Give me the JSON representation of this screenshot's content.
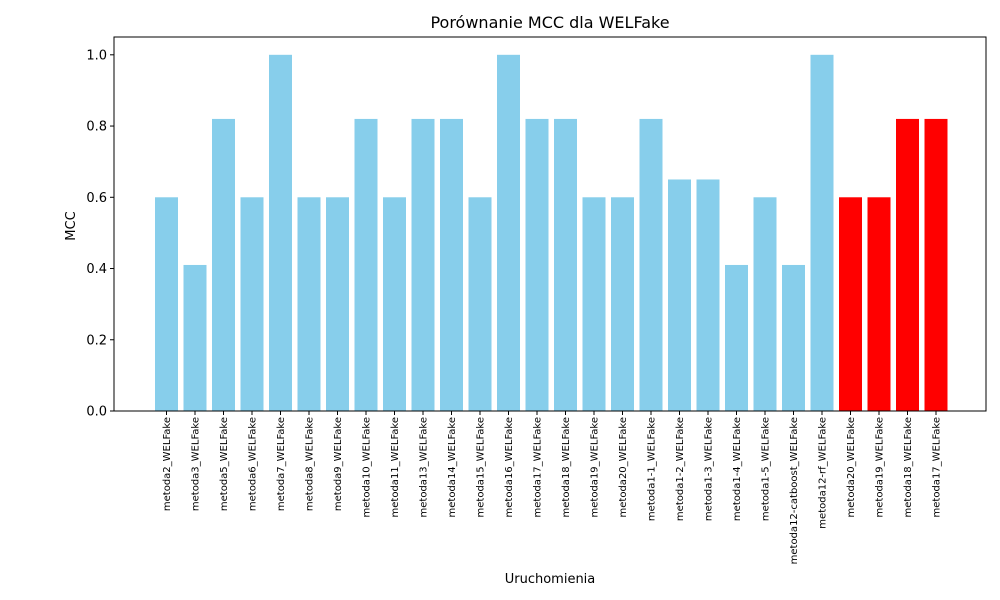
{
  "chart_data": {
    "type": "bar",
    "title": "Porównanie MCC dla WELFake",
    "xlabel": "Uruchomienia",
    "ylabel": "MCC",
    "ylim": [
      0,
      1.05
    ],
    "yticks": [
      "0.0",
      "0.2",
      "0.4",
      "0.6",
      "0.8",
      "1.0"
    ],
    "grid": false,
    "colors": {
      "default": "#87ceeb",
      "highlight": "#ff0000"
    },
    "categories": [
      "metoda2_WELFake",
      "metoda3_WELFake",
      "metoda5_WELFake",
      "metoda6_WELFake",
      "metoda7_WELFake",
      "metoda8_WELFake",
      "metoda9_WELFake",
      "metoda10_WELFake",
      "metoda11_WELFake",
      "metoda13_WELFake",
      "metoda14_WELFake",
      "metoda15_WELFake",
      "metoda16_WELFake",
      "metoda17_WELFake",
      "metoda18_WELFake",
      "metoda19_WELFake",
      "metoda20_WELFake",
      "metoda1-1_WELFake",
      "metoda1-2_WELFake",
      "metoda1-3_WELFake",
      "metoda1-4_WELFake",
      "metoda1-5_WELFake",
      "metoda12-catboost_WELFake",
      "metoda12-rf_WELFake",
      "metoda20_WELFake",
      "metoda19_WELFake",
      "metoda18_WELFake",
      "metoda17_WELFake"
    ],
    "values": [
      0.6,
      0.41,
      0.82,
      0.6,
      1.0,
      0.6,
      0.6,
      0.82,
      0.6,
      0.82,
      0.82,
      0.6,
      1.0,
      0.82,
      0.82,
      0.6,
      0.6,
      0.82,
      0.65,
      0.65,
      0.41,
      0.6,
      0.41,
      1.0,
      0.6,
      0.6,
      0.82,
      0.82
    ],
    "bar_colors": [
      "default",
      "default",
      "default",
      "default",
      "default",
      "default",
      "default",
      "default",
      "default",
      "default",
      "default",
      "default",
      "default",
      "default",
      "default",
      "default",
      "default",
      "default",
      "default",
      "default",
      "default",
      "default",
      "default",
      "default",
      "highlight",
      "highlight",
      "highlight",
      "highlight"
    ]
  }
}
